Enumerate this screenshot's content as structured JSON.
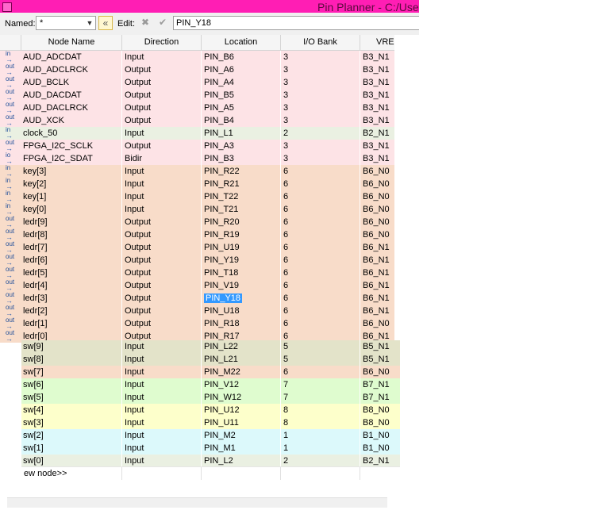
{
  "window": {
    "title": "Pin Planner - C:/Use"
  },
  "toolbar": {
    "named_label": "Named:",
    "named_value": "*",
    "edit_label": "Edit:",
    "edit_value": "PIN_Y18"
  },
  "columns": [
    "Node Name",
    "Direction",
    "Location",
    "I/O Bank",
    "VREF"
  ],
  "rows": [
    {
      "icon": "in",
      "name": "AUD_ADCDAT",
      "direction": "Input",
      "location": "PIN_B6",
      "bank": "3",
      "vref": "B3_N1",
      "color": "#fde3e6"
    },
    {
      "icon": "out",
      "name": "AUD_ADCLRCK",
      "direction": "Output",
      "location": "PIN_A6",
      "bank": "3",
      "vref": "B3_N1",
      "color": "#fde3e6"
    },
    {
      "icon": "out",
      "name": "AUD_BCLK",
      "direction": "Output",
      "location": "PIN_A4",
      "bank": "3",
      "vref": "B3_N1",
      "color": "#fde3e6"
    },
    {
      "icon": "out",
      "name": "AUD_DACDAT",
      "direction": "Output",
      "location": "PIN_B5",
      "bank": "3",
      "vref": "B3_N1",
      "color": "#fde3e6"
    },
    {
      "icon": "out",
      "name": "AUD_DACLRCK",
      "direction": "Output",
      "location": "PIN_A5",
      "bank": "3",
      "vref": "B3_N1",
      "color": "#fde3e6"
    },
    {
      "icon": "out",
      "name": "AUD_XCK",
      "direction": "Output",
      "location": "PIN_B4",
      "bank": "3",
      "vref": "B3_N1",
      "color": "#fde3e6"
    },
    {
      "icon": "in",
      "name": "clock_50",
      "direction": "Input",
      "location": "PIN_L1",
      "bank": "2",
      "vref": "B2_N1",
      "color": "#eaf0e2"
    },
    {
      "icon": "out",
      "name": "FPGA_I2C_SCLK",
      "direction": "Output",
      "location": "PIN_A3",
      "bank": "3",
      "vref": "B3_N1",
      "color": "#fde3e6"
    },
    {
      "icon": "io",
      "name": "FPGA_I2C_SDAT",
      "direction": "Bidir",
      "location": "PIN_B3",
      "bank": "3",
      "vref": "B3_N1",
      "color": "#fde3e6"
    },
    {
      "icon": "in",
      "name": "key[3]",
      "direction": "Input",
      "location": "PIN_R22",
      "bank": "6",
      "vref": "B6_N0",
      "color": "#f8dcc9"
    },
    {
      "icon": "in",
      "name": "key[2]",
      "direction": "Input",
      "location": "PIN_R21",
      "bank": "6",
      "vref": "B6_N0",
      "color": "#f8dcc9"
    },
    {
      "icon": "in",
      "name": "key[1]",
      "direction": "Input",
      "location": "PIN_T22",
      "bank": "6",
      "vref": "B6_N0",
      "color": "#f8dcc9"
    },
    {
      "icon": "in",
      "name": "key[0]",
      "direction": "Input",
      "location": "PIN_T21",
      "bank": "6",
      "vref": "B6_N0",
      "color": "#f8dcc9"
    },
    {
      "icon": "out",
      "name": "ledr[9]",
      "direction": "Output",
      "location": "PIN_R20",
      "bank": "6",
      "vref": "B6_N0",
      "color": "#f8dcc9"
    },
    {
      "icon": "out",
      "name": "ledr[8]",
      "direction": "Output",
      "location": "PIN_R19",
      "bank": "6",
      "vref": "B6_N0",
      "color": "#f8dcc9"
    },
    {
      "icon": "out",
      "name": "ledr[7]",
      "direction": "Output",
      "location": "PIN_U19",
      "bank": "6",
      "vref": "B6_N1",
      "color": "#f8dcc9"
    },
    {
      "icon": "out",
      "name": "ledr[6]",
      "direction": "Output",
      "location": "PIN_Y19",
      "bank": "6",
      "vref": "B6_N1",
      "color": "#f8dcc9"
    },
    {
      "icon": "out",
      "name": "ledr[5]",
      "direction": "Output",
      "location": "PIN_T18",
      "bank": "6",
      "vref": "B6_N1",
      "color": "#f8dcc9"
    },
    {
      "icon": "out",
      "name": "ledr[4]",
      "direction": "Output",
      "location": "PIN_V19",
      "bank": "6",
      "vref": "B6_N1",
      "color": "#f8dcc9"
    },
    {
      "icon": "out",
      "name": "ledr[3]",
      "direction": "Output",
      "location": "PIN_Y18",
      "bank": "6",
      "vref": "B6_N1",
      "color": "#f8dcc9",
      "selected": true
    },
    {
      "icon": "out",
      "name": "ledr[2]",
      "direction": "Output",
      "location": "PIN_U18",
      "bank": "6",
      "vref": "B6_N1",
      "color": "#f8dcc9"
    },
    {
      "icon": "out",
      "name": "ledr[1]",
      "direction": "Output",
      "location": "PIN_R18",
      "bank": "6",
      "vref": "B6_N0",
      "color": "#f8dcc9"
    },
    {
      "icon": "out",
      "name": "ledr[0]",
      "direction": "Output",
      "location": "PIN_R17",
      "bank": "6",
      "vref": "B6_N1",
      "color": "#f8dcc9"
    },
    {
      "icon": "",
      "name": "sw[9]",
      "direction": "Input",
      "location": "PIN_L22",
      "bank": "5",
      "vref": "B5_N1",
      "color": "#e3e3c9"
    },
    {
      "icon": "",
      "name": "sw[8]",
      "direction": "Input",
      "location": "PIN_L21",
      "bank": "5",
      "vref": "B5_N1",
      "color": "#e3e3c9"
    },
    {
      "icon": "",
      "name": "sw[7]",
      "direction": "Input",
      "location": "PIN_M22",
      "bank": "6",
      "vref": "B6_N0",
      "color": "#f8dcc9"
    },
    {
      "icon": "",
      "name": "sw[6]",
      "direction": "Input",
      "location": "PIN_V12",
      "bank": "7",
      "vref": "B7_N1",
      "color": "#dffccf"
    },
    {
      "icon": "",
      "name": "sw[5]",
      "direction": "Input",
      "location": "PIN_W12",
      "bank": "7",
      "vref": "B7_N1",
      "color": "#dffccf"
    },
    {
      "icon": "",
      "name": "sw[4]",
      "direction": "Input",
      "location": "PIN_U12",
      "bank": "8",
      "vref": "B8_N0",
      "color": "#fdffcb"
    },
    {
      "icon": "",
      "name": "sw[3]",
      "direction": "Input",
      "location": "PIN_U11",
      "bank": "8",
      "vref": "B8_N0",
      "color": "#fdffcb"
    },
    {
      "icon": "",
      "name": "sw[2]",
      "direction": "Input",
      "location": "PIN_M2",
      "bank": "1",
      "vref": "B1_N0",
      "color": "#dcf9fb"
    },
    {
      "icon": "",
      "name": "sw[1]",
      "direction": "Input",
      "location": "PIN_M1",
      "bank": "1",
      "vref": "B1_N0",
      "color": "#dcf9fb"
    },
    {
      "icon": "",
      "name": "sw[0]",
      "direction": "Input",
      "location": "PIN_L2",
      "bank": "2",
      "vref": "B2_N1",
      "color": "#eaf0e2"
    }
  ],
  "new_node_label": "ew node>>"
}
